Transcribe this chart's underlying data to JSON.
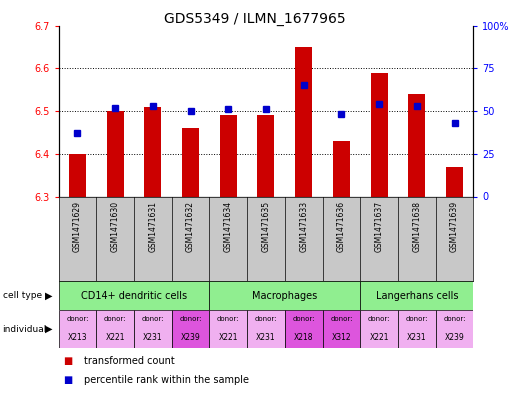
{
  "title": "GDS5349 / ILMN_1677965",
  "samples": [
    "GSM1471629",
    "GSM1471630",
    "GSM1471631",
    "GSM1471632",
    "GSM1471634",
    "GSM1471635",
    "GSM1471633",
    "GSM1471636",
    "GSM1471637",
    "GSM1471638",
    "GSM1471639"
  ],
  "transformed_count": [
    6.4,
    6.5,
    6.51,
    6.46,
    6.49,
    6.49,
    6.65,
    6.43,
    6.59,
    6.54,
    6.37
  ],
  "percentile_rank": [
    37,
    52,
    53,
    50,
    51,
    51,
    65,
    48,
    54,
    53,
    43
  ],
  "ymin": 6.3,
  "ymax": 6.7,
  "yticks": [
    6.3,
    6.4,
    6.5,
    6.6,
    6.7
  ],
  "y2ticks": [
    0,
    25,
    50,
    75,
    100
  ],
  "y2labels": [
    "0",
    "25",
    "50",
    "75",
    "100%"
  ],
  "cell_types": [
    {
      "label": "CD14+ dendritic cells",
      "start": 0,
      "end": 4,
      "color": "#90EE90"
    },
    {
      "label": "Macrophages",
      "start": 4,
      "end": 8,
      "color": "#90EE90"
    },
    {
      "label": "Langerhans cells",
      "start": 8,
      "end": 11,
      "color": "#90EE90"
    }
  ],
  "individuals": [
    {
      "donor": "X213",
      "col": 0,
      "color": "#f0b0f0"
    },
    {
      "donor": "X221",
      "col": 1,
      "color": "#f0b0f0"
    },
    {
      "donor": "X231",
      "col": 2,
      "color": "#f0b0f0"
    },
    {
      "donor": "X239",
      "col": 3,
      "color": "#dd55dd"
    },
    {
      "donor": "X221",
      "col": 4,
      "color": "#f0b0f0"
    },
    {
      "donor": "X231",
      "col": 5,
      "color": "#f0b0f0"
    },
    {
      "donor": "X218",
      "col": 6,
      "color": "#dd55dd"
    },
    {
      "donor": "X312",
      "col": 7,
      "color": "#dd55dd"
    },
    {
      "donor": "X221",
      "col": 8,
      "color": "#f0b0f0"
    },
    {
      "donor": "X231",
      "col": 9,
      "color": "#f0b0f0"
    },
    {
      "donor": "X239",
      "col": 10,
      "color": "#f0b0f0"
    }
  ],
  "bar_color": "#cc0000",
  "dot_color": "#0000cc",
  "bar_width": 0.45,
  "background_color": "#ffffff",
  "sample_bg_color": "#c8c8c8",
  "title_fontsize": 10,
  "tick_fontsize": 7,
  "sample_fontsize": 5.5,
  "cell_type_fontsize": 7,
  "ind_fontsize": 5,
  "legend_fontsize": 7
}
